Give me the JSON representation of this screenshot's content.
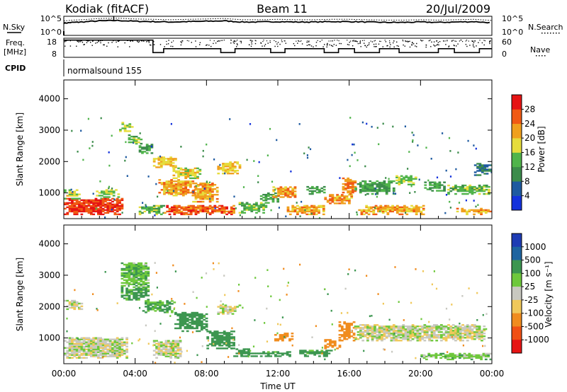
{
  "header": {
    "station": "Kodiak (fitACF)",
    "beam": "Beam 11",
    "date": "20/Jul/2009"
  },
  "side_labels": {
    "nsky": "N.Sky",
    "nsearch": "N.Search",
    "freq_line1": "Freq.",
    "freq_line2": "[MHz]",
    "nave": "Nave",
    "cpid": "CPID"
  },
  "noise_panel": {
    "left_ticks": [
      "10^5",
      "10^0"
    ],
    "right_ticks": [
      "10^5",
      "10^0"
    ]
  },
  "freq_panel": {
    "left_ticks": [
      "18",
      "8"
    ],
    "right_ticks": [
      "60",
      "0"
    ]
  },
  "cpid_text": "normalsound 155",
  "x_axis": {
    "label": "Time UT",
    "range_hours": [
      0,
      24
    ],
    "ticks": [
      "00:00",
      "04:00",
      "08:00",
      "12:00",
      "16:00",
      "20:00",
      "00:00"
    ]
  },
  "y_axis": {
    "label": "Slant Range [km]",
    "range_km": [
      180,
      4600
    ],
    "ticks": [
      "1000",
      "2000",
      "3000",
      "4000"
    ]
  },
  "colorbars": {
    "power": {
      "label": "Power [dB]",
      "ticks": [
        "4",
        "8",
        "12",
        "16",
        "20",
        "24",
        "28"
      ],
      "colors": [
        "#1432dc",
        "#1e5aa0",
        "#3c8c4b",
        "#50b44b",
        "#e6dc3c",
        "#f0a01e",
        "#f05a14",
        "#e61414"
      ]
    },
    "velocity": {
      "label": "Velocity [m s⁻¹]",
      "ticks": [
        "1000",
        "500",
        "100",
        "25",
        "-25",
        "-100",
        "-500",
        "-1000"
      ],
      "colors": [
        "#1e3cb4",
        "#1e64a0",
        "#3c9650",
        "#6ec83c",
        "#c8c8c0",
        "#f0c85a",
        "#f08c1e",
        "#f05014",
        "#e61414"
      ]
    }
  },
  "chart_data": [
    {
      "type": "line",
      "title": "",
      "series": [
        {
          "name": "N.Sky",
          "x": [
            0,
            0.5,
            1,
            2,
            3,
            4,
            5,
            6,
            7,
            8,
            9,
            10,
            11,
            12,
            13,
            14,
            15,
            16,
            17,
            18,
            19,
            20,
            21,
            22,
            23,
            24
          ],
          "y": [
            3.2,
            3.4,
            3.5,
            3.8,
            3.9,
            3.7,
            3.6,
            3.5,
            3.6,
            3.7,
            3.8,
            3.5,
            3.5,
            3.6,
            3.5,
            3.5,
            3.6,
            3.6,
            3.5,
            3.4,
            3.4,
            3.5,
            3.4,
            3.5,
            3.6,
            3.3
          ]
        }
      ],
      "xlabel": "",
      "ylabel": "",
      "xlim": [
        0,
        24
      ],
      "ylim": [
        0,
        5
      ],
      "y_scale": "log"
    },
    {
      "type": "line",
      "title": "",
      "series": [
        {
          "name": "Freq.",
          "x": [
            0,
            5.0,
            5.0,
            5.6,
            5.6,
            8.8,
            8.8,
            9.6,
            9.6,
            11.6,
            11.6,
            12.4,
            12.4,
            14.6,
            14.6,
            15.4,
            15.4,
            16.3,
            16.3,
            17.7,
            17.7,
            18.8,
            18.8,
            21.0,
            21.0,
            21.9,
            21.9,
            23.3,
            23.3,
            24
          ],
          "y": [
            17,
            17,
            10.5,
            10.5,
            12.5,
            12.5,
            10.5,
            10.5,
            12.5,
            12.5,
            10.5,
            10.5,
            12.5,
            12.5,
            10.5,
            10.5,
            12.5,
            12.5,
            10.5,
            10.5,
            12.5,
            12.5,
            10.5,
            10.5,
            12.5,
            12.5,
            10.5,
            10.5,
            12.5,
            12.5
          ]
        }
      ],
      "xlabel": "",
      "ylabel": "",
      "xlim": [
        0,
        24
      ],
      "ylim": [
        8,
        18
      ]
    },
    {
      "type": "heatmap",
      "title": "",
      "quantity": "Power",
      "unit": "dB",
      "colorbar_ticks": [
        4,
        8,
        12,
        16,
        20,
        24,
        28
      ],
      "xlabel": "",
      "ylabel": "Slant Range [km]",
      "xlim": [
        0,
        24
      ],
      "ylim": [
        180,
        4600
      ],
      "features": [
        {
          "t": [
            0.0,
            3.2
          ],
          "r": [
            300,
            800
          ],
          "value_db": 28
        },
        {
          "t": [
            0.0,
            0.8
          ],
          "r": [
            800,
            1100
          ],
          "value_db": 18
        },
        {
          "t": [
            1.8,
            3.1
          ],
          "r": [
            850,
            1100
          ],
          "value_db": 16
        },
        {
          "t": [
            3.1,
            3.9
          ],
          "r": [
            2950,
            3250
          ],
          "value_db": 16
        },
        {
          "t": [
            3.6,
            4.4
          ],
          "r": [
            2550,
            2850
          ],
          "value_db": 14
        },
        {
          "t": [
            4.2,
            5.0
          ],
          "r": [
            2250,
            2550
          ],
          "value_db": 12
        },
        {
          "t": [
            4.2,
            5.6
          ],
          "r": [
            300,
            600
          ],
          "value_db": 14
        },
        {
          "t": [
            5.0,
            6.3
          ],
          "r": [
            1800,
            2150
          ],
          "value_db": 20
        },
        {
          "t": [
            5.3,
            7.4
          ],
          "r": [
            900,
            1400
          ],
          "value_db": 22
        },
        {
          "t": [
            5.6,
            9.6
          ],
          "r": [
            300,
            600
          ],
          "value_db": 26
        },
        {
          "t": [
            6.1,
            7.6
          ],
          "r": [
            1450,
            1800
          ],
          "value_db": 18
        },
        {
          "t": [
            7.2,
            8.6
          ],
          "r": [
            700,
            1300
          ],
          "value_db": 22
        },
        {
          "t": [
            8.6,
            9.8
          ],
          "r": [
            1600,
            2000
          ],
          "value_db": 20
        },
        {
          "t": [
            9.8,
            11.5
          ],
          "r": [
            350,
            700
          ],
          "value_db": 14
        },
        {
          "t": [
            11.0,
            12.0
          ],
          "r": [
            700,
            1000
          ],
          "value_db": 12
        },
        {
          "t": [
            11.7,
            13.0
          ],
          "r": [
            850,
            1200
          ],
          "value_db": 22
        },
        {
          "t": [
            12.5,
            14.5
          ],
          "r": [
            300,
            600
          ],
          "value_db": 22
        },
        {
          "t": [
            13.6,
            14.6
          ],
          "r": [
            950,
            1200
          ],
          "value_db": 12
        },
        {
          "t": [
            14.6,
            16.1
          ],
          "r": [
            650,
            950
          ],
          "value_db": 22
        },
        {
          "t": [
            15.6,
            16.4
          ],
          "r": [
            950,
            1450
          ],
          "value_db": 24
        },
        {
          "t": [
            16.3,
            18.5
          ],
          "r": [
            950,
            1400
          ],
          "value_db": 12
        },
        {
          "t": [
            16.5,
            20.2
          ],
          "r": [
            300,
            600
          ],
          "value_db": 22
        },
        {
          "t": [
            18.6,
            19.7
          ],
          "r": [
            1250,
            1550
          ],
          "value_db": 16
        },
        {
          "t": [
            20.2,
            21.3
          ],
          "r": [
            1050,
            1350
          ],
          "value_db": 12
        },
        {
          "t": [
            21.5,
            23.8
          ],
          "r": [
            950,
            1250
          ],
          "value_db": 14
        },
        {
          "t": [
            22.0,
            24.0
          ],
          "r": [
            300,
            500
          ],
          "value_db": 22
        },
        {
          "t": [
            23.0,
            24.0
          ],
          "r": [
            1550,
            1950
          ],
          "value_db": 8
        }
      ]
    },
    {
      "type": "heatmap",
      "title": "",
      "quantity": "Velocity",
      "unit": "m s⁻¹",
      "colorbar_ticks": [
        1000,
        500,
        100,
        25,
        -25,
        -100,
        -500,
        -1000
      ],
      "xlabel": "Time UT",
      "ylabel": "Slant Range [km]",
      "xlim": [
        0,
        24
      ],
      "ylim": [
        180,
        4600
      ],
      "features": [
        {
          "t": [
            0.0,
            3.5
          ],
          "r": [
            350,
            1000
          ],
          "value_ms": 0
        },
        {
          "t": [
            0.0,
            1.0
          ],
          "r": [
            1900,
            2200
          ],
          "value_ms": 0
        },
        {
          "t": [
            3.2,
            4.8
          ],
          "r": [
            2600,
            3400
          ],
          "value_ms": 80
        },
        {
          "t": [
            3.2,
            4.8
          ],
          "r": [
            2200,
            2600
          ],
          "value_ms": 120
        },
        {
          "t": [
            4.4,
            6.2
          ],
          "r": [
            1800,
            2200
          ],
          "value_ms": 120
        },
        {
          "t": [
            6.2,
            8.0
          ],
          "r": [
            1200,
            1800
          ],
          "value_ms": 200
        },
        {
          "t": [
            8.0,
            9.5
          ],
          "r": [
            650,
            1200
          ],
          "value_ms": 300
        },
        {
          "t": [
            5.0,
            6.6
          ],
          "r": [
            350,
            900
          ],
          "value_ms": 0
        },
        {
          "t": [
            8.6,
            9.8
          ],
          "r": [
            1750,
            2050
          ],
          "value_ms": 0
        },
        {
          "t": [
            9.5,
            10.4
          ],
          "r": [
            400,
            650
          ],
          "value_ms": 200
        },
        {
          "t": [
            10.2,
            12.6
          ],
          "r": [
            400,
            550
          ],
          "value_ms": 150
        },
        {
          "t": [
            11.8,
            12.8
          ],
          "r": [
            900,
            1150
          ],
          "value_ms": -300
        },
        {
          "t": [
            14.6,
            15.4
          ],
          "r": [
            650,
            950
          ],
          "value_ms": -300
        },
        {
          "t": [
            15.4,
            16.3
          ],
          "r": [
            900,
            1500
          ],
          "value_ms": -300
        },
        {
          "t": [
            13.2,
            15.0
          ],
          "r": [
            400,
            600
          ],
          "value_ms": 150
        },
        {
          "t": [
            16.3,
            23.5
          ],
          "r": [
            900,
            1400
          ],
          "value_ms": 0
        },
        {
          "t": [
            20.0,
            24.0
          ],
          "r": [
            300,
            500
          ],
          "value_ms": 60
        }
      ]
    }
  ]
}
